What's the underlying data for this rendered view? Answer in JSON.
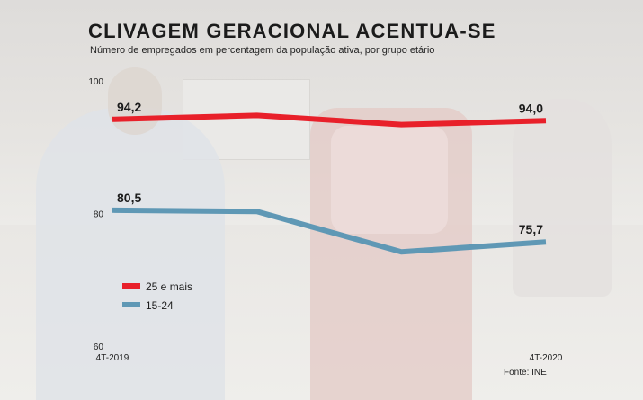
{
  "title": "CLIVAGEM GERACIONAL ACENTUA-SE",
  "subtitle": "Número de empregados em percentagem da população ativa, por grupo etário",
  "source": "Fonte: INE",
  "chart_data": {
    "type": "line",
    "x": [
      0,
      1,
      2,
      3
    ],
    "x_tick_labels": [
      "4T-2019",
      "",
      "",
      "4T-2020"
    ],
    "ylim": [
      60,
      100
    ],
    "y_ticks": [
      60,
      80,
      100
    ],
    "grid": false,
    "legend_position": "left-middle",
    "series": [
      {
        "name": "25 e mais",
        "color": "#e8202a",
        "values": [
          94.2,
          94.8,
          93.4,
          94.0
        ],
        "labels": [
          "94,2",
          "",
          "",
          "94,0"
        ]
      },
      {
        "name": "15-24",
        "color": "#5f98b5",
        "values": [
          80.5,
          80.3,
          74.2,
          75.7
        ],
        "labels": [
          "80,5",
          "",
          "",
          "75,7"
        ]
      }
    ]
  }
}
